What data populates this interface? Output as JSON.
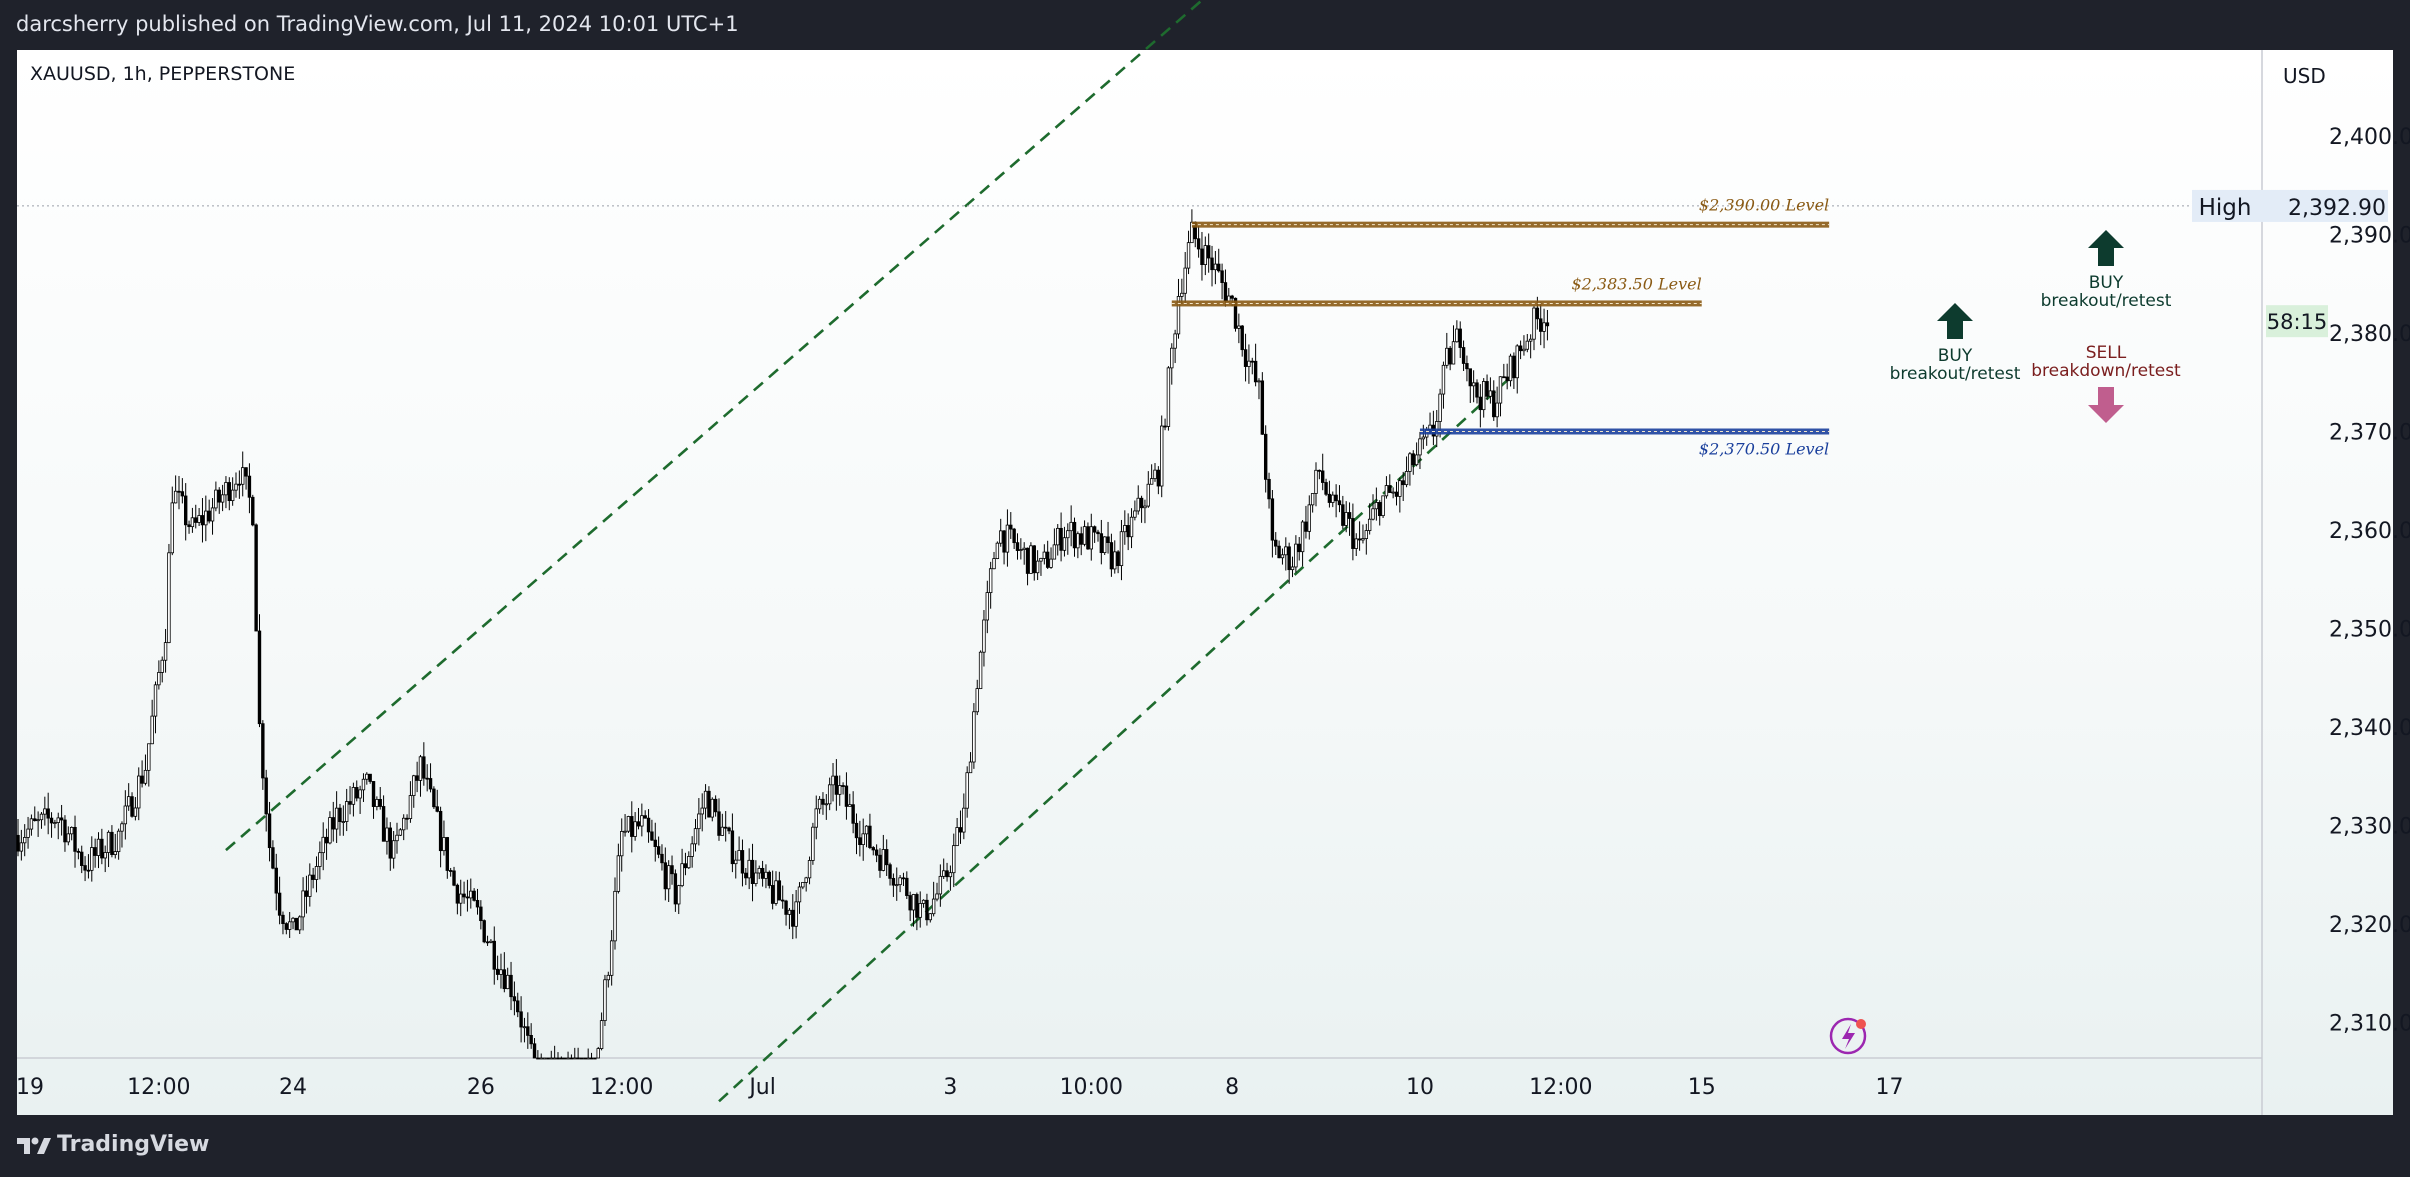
{
  "header": {
    "published_by": "darcsherry published on TradingView.com, Jul 11, 2024 10:01 UTC+1"
  },
  "footer": {
    "brand": "TradingView"
  },
  "chart_data": {
    "type": "candlestick",
    "symbol_line": "XAUUSD, 1h, PEPPERSTONE",
    "currency": "USD",
    "y_ticks": [
      "2,400.00",
      "2,390.00",
      "2,380.00",
      "2,370.00",
      "2,360.00",
      "2,350.00",
      "2,340.00",
      "2,330.00",
      "2,320.00",
      "2,310.00"
    ],
    "ylim": [
      2305,
      2412
    ],
    "x_ticks": [
      "19",
      "12:00",
      "24",
      "26",
      "12:00",
      "Jul",
      "3",
      "10:00",
      "8",
      "10",
      "12:00",
      "15",
      "17"
    ],
    "x_tick_index": [
      0,
      42,
      82,
      138,
      180,
      222,
      278,
      320,
      362,
      418,
      460,
      502,
      558
    ],
    "high_label": "High",
    "high_value": "2,392.90",
    "countdown": "58:15",
    "price_path": [
      [
        0,
        2329
      ],
      [
        12,
        2331
      ],
      [
        20,
        2326
      ],
      [
        30,
        2329
      ],
      [
        38,
        2336
      ],
      [
        44,
        2350
      ],
      [
        46,
        2364
      ],
      [
        52,
        2360
      ],
      [
        60,
        2363
      ],
      [
        66,
        2366
      ],
      [
        70,
        2362
      ],
      [
        72,
        2340
      ],
      [
        75,
        2328
      ],
      [
        78,
        2322
      ],
      [
        82,
        2319
      ],
      [
        88,
        2325
      ],
      [
        95,
        2331
      ],
      [
        104,
        2334
      ],
      [
        112,
        2327
      ],
      [
        120,
        2336
      ],
      [
        125,
        2330
      ],
      [
        130,
        2324
      ],
      [
        137,
        2321
      ],
      [
        142,
        2317
      ],
      [
        148,
        2313
      ],
      [
        154,
        2305
      ],
      [
        172,
        2305
      ],
      [
        176,
        2316
      ],
      [
        180,
        2329
      ],
      [
        186,
        2330
      ],
      [
        196,
        2323
      ],
      [
        205,
        2333
      ],
      [
        212,
        2328
      ],
      [
        222,
        2324
      ],
      [
        232,
        2321
      ],
      [
        238,
        2331
      ],
      [
        244,
        2334
      ],
      [
        252,
        2329
      ],
      [
        262,
        2325
      ],
      [
        270,
        2321
      ],
      [
        276,
        2324
      ],
      [
        282,
        2331
      ],
      [
        286,
        2345
      ],
      [
        292,
        2360
      ],
      [
        298,
        2358
      ],
      [
        305,
        2356
      ],
      [
        312,
        2360
      ],
      [
        320,
        2359
      ],
      [
        327,
        2357
      ],
      [
        334,
        2362
      ],
      [
        340,
        2366
      ],
      [
        346,
        2384
      ],
      [
        350,
        2390
      ],
      [
        356,
        2387
      ],
      [
        362,
        2383
      ],
      [
        366,
        2378
      ],
      [
        370,
        2374
      ],
      [
        374,
        2358
      ],
      [
        380,
        2357
      ],
      [
        384,
        2361
      ],
      [
        388,
        2366
      ],
      [
        392,
        2362
      ],
      [
        396,
        2361
      ],
      [
        400,
        2358
      ],
      [
        406,
        2363
      ],
      [
        412,
        2364
      ],
      [
        416,
        2367
      ],
      [
        422,
        2370
      ],
      [
        426,
        2377
      ],
      [
        430,
        2380
      ],
      [
        434,
        2374
      ],
      [
        440,
        2373
      ],
      [
        446,
        2377
      ],
      [
        452,
        2381
      ],
      [
        456,
        2382
      ]
    ],
    "channel_lines": [
      {
        "style": "dashed",
        "from": [
          62,
          2327.5
        ],
        "to": [
          406,
          2429.5
        ]
      },
      {
        "style": "dashed",
        "from": [
          209,
          2302
        ],
        "to": [
          445,
          2375.5
        ]
      }
    ],
    "levels": [
      {
        "label": "$2,390.00 Level",
        "price": 2391,
        "from": 350,
        "to": 540,
        "color": "#8a5a14"
      },
      {
        "label": "$2,383.50 Level",
        "price": 2383,
        "from": 344,
        "to": 502,
        "color": "#8a5a14"
      },
      {
        "label": "$2,370.50 Level",
        "price": 2370,
        "from": 418,
        "to": 540,
        "color": "#1a3f9c"
      }
    ],
    "annotations": [
      {
        "direction": "up",
        "line1": "BUY",
        "line2": "breakout/retest",
        "color": "#0d3b2e"
      },
      {
        "direction": "up",
        "line1": "BUY",
        "line2": "breakout/retest",
        "color": "#0d3b2e"
      },
      {
        "direction": "down",
        "line1": "SELL",
        "line2": "breakdown/retest",
        "color": "#7a1e1e"
      }
    ]
  }
}
